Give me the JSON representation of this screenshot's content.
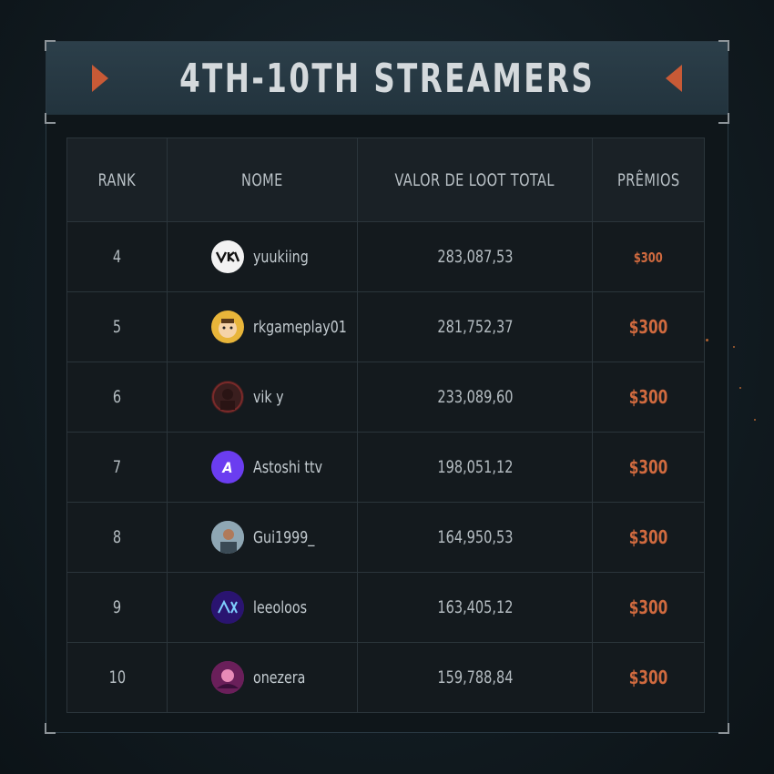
{
  "header": {
    "title": "4TH-10TH STREAMERS"
  },
  "table": {
    "columns": [
      "RANK",
      "NOME",
      "VALOR DE LOOT TOTAL",
      "PRÊMIOS"
    ],
    "rows": [
      {
        "rank": "4",
        "name": "yuukiing",
        "loot": "283,087,53",
        "prize": "$300",
        "avatar_icon": "yk-logo-icon",
        "avatar_bg": "#f2f2f2",
        "avatar_fg": "#111111"
      },
      {
        "rank": "5",
        "name": "rkgameplay01",
        "loot": "281,752,37",
        "prize": "$300",
        "avatar_icon": "cartoon-face-icon",
        "avatar_bg": "#e8b53a",
        "avatar_fg": "#ffffff"
      },
      {
        "rank": "6",
        "name": "vik y",
        "loot": "233,089,60",
        "prize": "$300",
        "avatar_icon": "dark-portrait-icon",
        "avatar_bg": "#3a1e1e",
        "avatar_fg": "#7a2a2a"
      },
      {
        "rank": "7",
        "name": "Astoshi ttv",
        "loot": "198,051,12",
        "prize": "$300",
        "avatar_icon": "letter-a-icon",
        "avatar_bg": "#6b3df0",
        "avatar_fg": "#ffffff"
      },
      {
        "rank": "8",
        "name": "Gui1999_",
        "loot": "164,950,53",
        "prize": "$300",
        "avatar_icon": "photo-portrait-icon",
        "avatar_bg": "#7a8e9a",
        "avatar_fg": "#ffffff"
      },
      {
        "rank": "9",
        "name": "leeoloos",
        "loot": "163,405,12",
        "prize": "$300",
        "avatar_icon": "neon-logo-icon",
        "avatar_bg": "#3a1a8a",
        "avatar_fg": "#ffffff"
      },
      {
        "rank": "10",
        "name": "onezera",
        "loot": "159,788,84",
        "prize": "$300",
        "avatar_icon": "anime-portrait-icon",
        "avatar_bg": "#8a2a6a",
        "avatar_fg": "#ffffff"
      }
    ]
  },
  "colors": {
    "accent": "#d06a3f",
    "background": "#121c22",
    "header_bg": "#2c3f4a"
  }
}
